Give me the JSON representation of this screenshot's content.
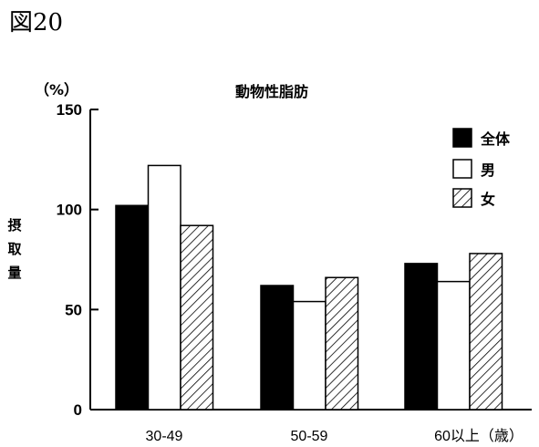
{
  "figure_label": "図20",
  "chart_data": {
    "type": "bar",
    "title": "動物性脂肪",
    "unit_label": "（%）",
    "ylabel": "摂取量",
    "ylim": [
      0,
      150
    ],
    "yticks": [
      "0",
      "50",
      "100",
      "150"
    ],
    "categories": [
      "30-49",
      "50-59",
      "60以上（歳）"
    ],
    "series": [
      {
        "name": "全体",
        "values": [
          102,
          62,
          73
        ]
      },
      {
        "name": "男",
        "values": [
          122,
          54,
          64
        ]
      },
      {
        "name": "女",
        "values": [
          92,
          66,
          78
        ]
      }
    ],
    "legend_position": "top-right",
    "grid": false
  },
  "colors": {
    "all": "#000000",
    "male": "#ffffff",
    "female": "hatch"
  }
}
